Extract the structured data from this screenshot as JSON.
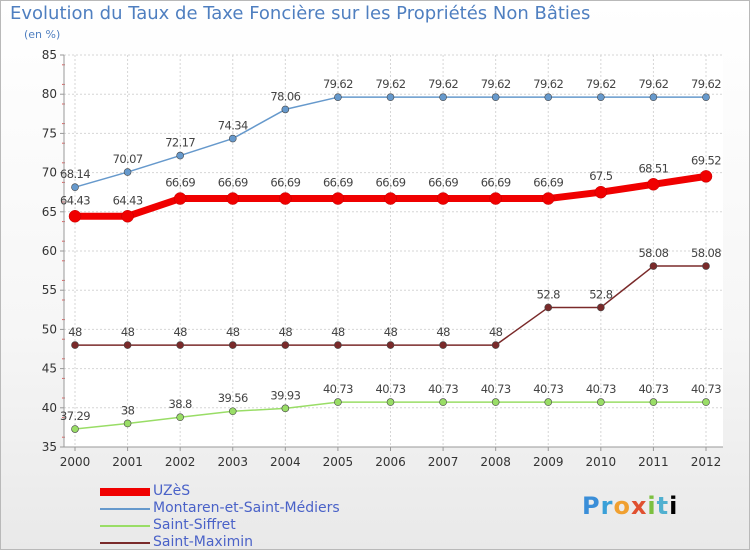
{
  "header": {
    "title": "Evolution du Taux de Taxe Foncière sur les Propriétés Non Bâties",
    "subtitle": "(en %)"
  },
  "logo": {
    "letters": [
      "P",
      "r",
      "o",
      "x",
      "i",
      "t",
      "i"
    ],
    "text": "Proxiti"
  },
  "chart_data": {
    "type": "line",
    "title": "Evolution du Taux de Taxe Foncière sur les Propriétés Non Bâties",
    "ylabel": "(en %)",
    "xlabel": "",
    "ylim": [
      35,
      85
    ],
    "yticks": [
      35,
      40,
      45,
      50,
      55,
      60,
      65,
      70,
      75,
      80,
      85
    ],
    "grid": true,
    "legend_position": "bottom-left",
    "categories": [
      "2000",
      "2001",
      "2002",
      "2003",
      "2004",
      "2005",
      "2006",
      "2007",
      "2008",
      "2009",
      "2010",
      "2011",
      "2012"
    ],
    "series": [
      {
        "name": "UZèS",
        "color": "#f00000",
        "values": [
          64.43,
          64.43,
          66.69,
          66.69,
          66.69,
          66.69,
          66.69,
          66.69,
          66.69,
          66.69,
          67.5,
          68.51,
          69.52
        ],
        "labels": [
          "64.43",
          "64.43",
          "66.69",
          "66.69",
          "66.69",
          "66.69",
          "66.69",
          "66.69",
          "66.69",
          "66.69",
          "67.5",
          "68.51",
          "69.52"
        ]
      },
      {
        "name": "Montaren-et-Saint-Médiers",
        "color": "#6699cc",
        "values": [
          68.14,
          70.07,
          72.17,
          74.34,
          78.06,
          79.62,
          79.62,
          79.62,
          79.62,
          79.62,
          79.62,
          79.62,
          79.62
        ],
        "labels": [
          "68.14",
          "70.07",
          "72.17",
          "74.34",
          "78.06",
          "79.62",
          "79.62",
          "79.62",
          "79.62",
          "79.62",
          "79.62",
          "79.62",
          "79.62"
        ]
      },
      {
        "name": "Saint-Siffret",
        "color": "#99dd66",
        "values": [
          37.29,
          38,
          38.8,
          39.56,
          39.93,
          40.73,
          40.73,
          40.73,
          40.73,
          40.73,
          40.73,
          40.73,
          40.73
        ],
        "labels": [
          "37.29",
          "38",
          "38.8",
          "39.56",
          "39.93",
          "40.73",
          "40.73",
          "40.73",
          "40.73",
          "40.73",
          "40.73",
          "40.73",
          "40.73"
        ]
      },
      {
        "name": "Saint-Maximin",
        "color": "#7a2a2a",
        "values": [
          48,
          48,
          48,
          48,
          48,
          48,
          48,
          48,
          48,
          52.8,
          52.8,
          58.08,
          58.08
        ],
        "labels": [
          "48",
          "48",
          "48",
          "48",
          "48",
          "48",
          "48",
          "48",
          "48",
          "52.8",
          "52.8",
          "58.08",
          "58.08"
        ]
      }
    ]
  }
}
